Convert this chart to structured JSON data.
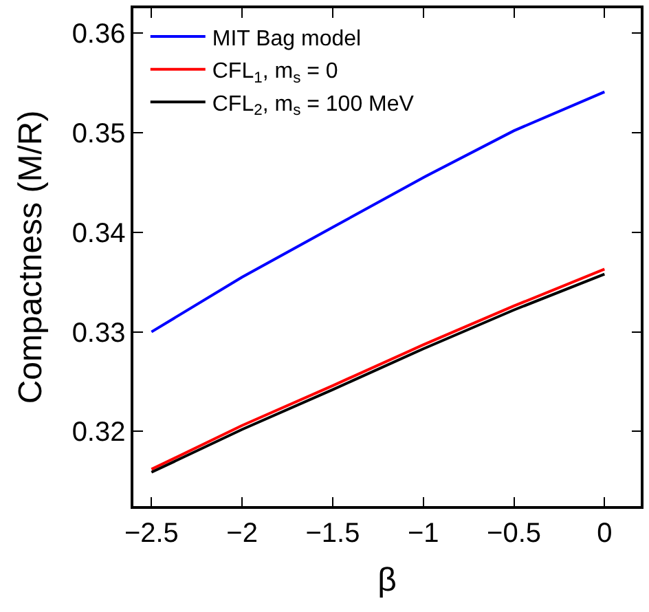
{
  "chart_data": {
    "type": "line",
    "xlabel": "β",
    "ylabel": "Compactness (M/R)",
    "x": [
      -2.5,
      -2,
      -1.5,
      -1,
      -0.5,
      0
    ],
    "series": [
      {
        "name": "MIT Bag model",
        "color": "#0000ff",
        "values": [
          0.33,
          0.3355,
          0.3405,
          0.3455,
          0.3502,
          0.3541
        ]
      },
      {
        "name": "CFL$_{1}$, m$_{s}$ = 0",
        "color": "#ff0000",
        "values": [
          0.3162,
          0.3206,
          0.3246,
          0.3287,
          0.3326,
          0.3363
        ]
      },
      {
        "name": "CFL$_{2}$, m$_{s}$ = 100 MeV",
        "color": "#000000",
        "values": [
          0.3159,
          0.3202,
          0.3242,
          0.3283,
          0.3322,
          0.3358
        ]
      }
    ],
    "xlim": [
      -2.6,
      0.2
    ],
    "ylim": [
      0.3125,
      0.3625
    ],
    "xticks": [
      {
        "value": -2.5,
        "label": "−2.5"
      },
      {
        "value": -2,
        "label": "−2"
      },
      {
        "value": -1.5,
        "label": "−1.5"
      },
      {
        "value": -1,
        "label": "−1"
      },
      {
        "value": -0.5,
        "label": "−0.5"
      },
      0
    ],
    "yticks": [
      {
        "value": 0.32,
        "label": "0.32"
      },
      {
        "value": 0.33,
        "label": "0.33"
      },
      {
        "value": 0.34,
        "label": "0.34"
      },
      {
        "value": 0.35,
        "label": "0.35"
      },
      {
        "value": 0.36,
        "label": "0.36"
      }
    ],
    "legend": "top left",
    "marker": "none",
    "line_style": "solid"
  }
}
